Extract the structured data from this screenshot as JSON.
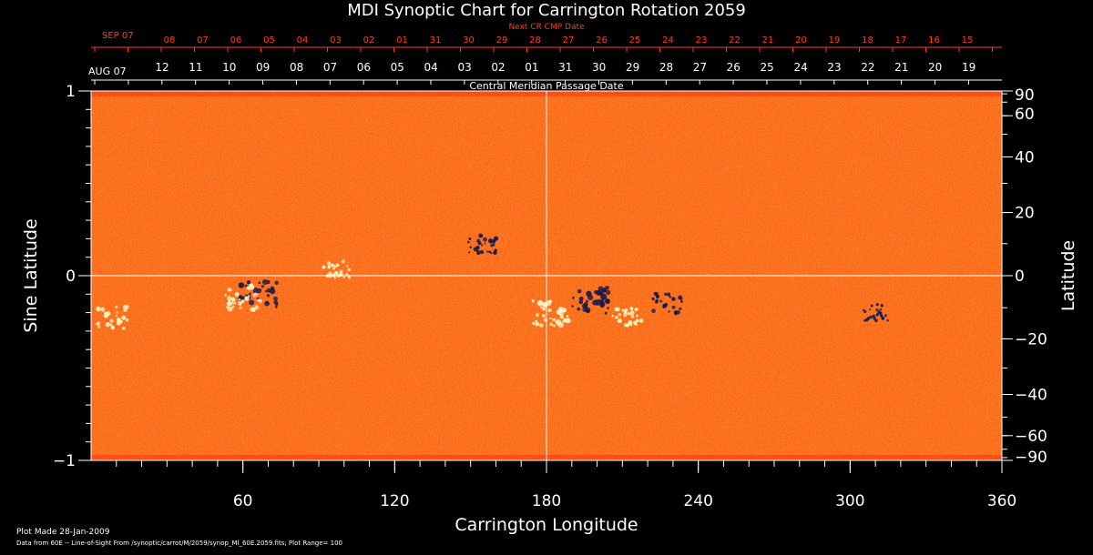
{
  "chart_data": {
    "type": "heatmap",
    "title": "MDI Synoptic Chart for Carrington Rotation 2059",
    "xlabel": "Carrington Longitude",
    "ylabel": "Sine Latitude",
    "y2label": "Latitude",
    "xlim": [
      0,
      360
    ],
    "ylim": [
      -1,
      1
    ],
    "x_ticks": [
      60,
      120,
      180,
      240,
      300,
      360
    ],
    "y_ticks": [
      {
        "value": 1,
        "label": "1"
      },
      {
        "value": 0,
        "label": "0"
      },
      {
        "value": -1,
        "label": "−1"
      }
    ],
    "lat_ticks": [
      {
        "deg": 90,
        "label": "90"
      },
      {
        "deg": 60,
        "label": "60"
      },
      {
        "deg": 40,
        "label": "40"
      },
      {
        "deg": 20,
        "label": "20"
      },
      {
        "deg": 0,
        "label": "0"
      },
      {
        "deg": -20,
        "label": "−20"
      },
      {
        "deg": -40,
        "label": "−40"
      },
      {
        "deg": -60,
        "label": "−60"
      },
      {
        "deg": -90,
        "label": "−90"
      }
    ],
    "cmp_axis_title": "Central Meridian Passage Date",
    "cmp_start_label": "AUG 07",
    "cmp_dates": [
      "12",
      "11",
      "10",
      "09",
      "08",
      "07",
      "06",
      "05",
      "04",
      "03",
      "02",
      "01",
      "31",
      "30",
      "29",
      "28",
      "27",
      "26",
      "25",
      "24",
      "23",
      "22",
      "21",
      "20",
      "19"
    ],
    "next_cmp_axis_title": "Next CR CMP Date",
    "next_cmp_start_label": "SEP 07",
    "next_cmp_dates": [
      "08",
      "07",
      "06",
      "05",
      "04",
      "03",
      "02",
      "01",
      "31",
      "30",
      "29",
      "28",
      "27",
      "26",
      "25",
      "24",
      "23",
      "22",
      "21",
      "20",
      "19",
      "18",
      "17",
      "16",
      "15"
    ],
    "colors": {
      "background": "#ff6a16",
      "strong_positive": "#fff3c0",
      "strong_negative": "#1a1a4a",
      "axes": "#ffffff",
      "top_axis": "#ff3b1e"
    },
    "active_regions": [
      {
        "lon": 8,
        "sinlat": -0.23,
        "polarity": "positive",
        "strength": 0.7
      },
      {
        "lon": 66,
        "sinlat": -0.1,
        "polarity": "negative",
        "strength": 0.9
      },
      {
        "lon": 60,
        "sinlat": -0.12,
        "polarity": "positive",
        "strength": 0.8
      },
      {
        "lon": 97,
        "sinlat": 0.04,
        "polarity": "positive",
        "strength": 0.5
      },
      {
        "lon": 155,
        "sinlat": 0.16,
        "polarity": "negative",
        "strength": 0.6
      },
      {
        "lon": 182,
        "sinlat": -0.2,
        "polarity": "positive",
        "strength": 0.9
      },
      {
        "lon": 198,
        "sinlat": -0.13,
        "polarity": "negative",
        "strength": 1.0
      },
      {
        "lon": 212,
        "sinlat": -0.22,
        "polarity": "positive",
        "strength": 0.6
      },
      {
        "lon": 228,
        "sinlat": -0.15,
        "polarity": "negative",
        "strength": 0.6
      },
      {
        "lon": 310,
        "sinlat": -0.2,
        "polarity": "negative",
        "strength": 0.4
      }
    ]
  },
  "footer": {
    "plot_made": "Plot Made 28-Jan-2009",
    "source": "Data from 60E -- Line-of-Sight From /synoptic/carrot/M/2059/synop_Ml_60E.2059.fits; Plot Range= 100"
  }
}
